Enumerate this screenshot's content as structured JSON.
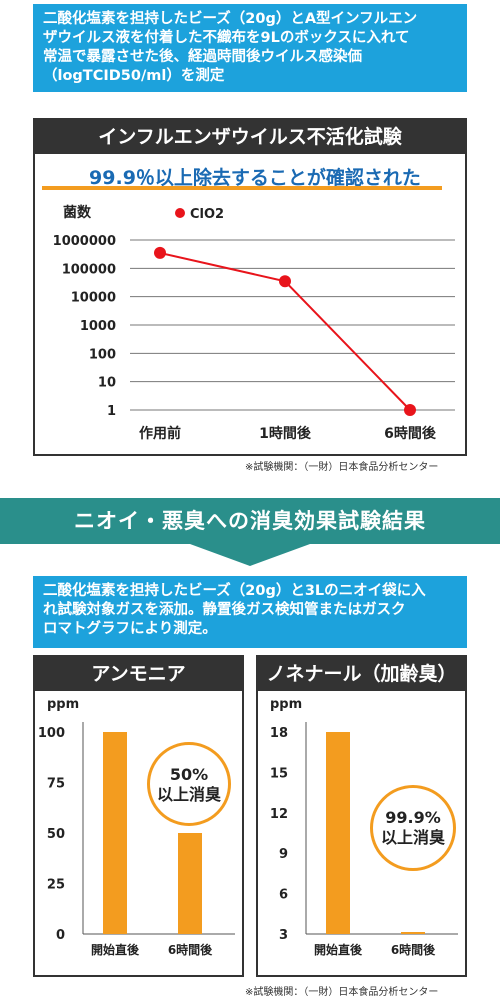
{
  "intro1": {
    "lines": [
      "二酸化塩素を担持したビーズ（20g）とA型インフルエン",
      "ザウイルス液を付着した不織布を9Lのボックスに入れて",
      "常温で暴露させた後、経過時間後ウイルス感染価",
      "（logTCID50/ml）を測定"
    ]
  },
  "virus_panel": {
    "title": "インフルエンザウイルス不活化試験",
    "headline": "99.9％以上除去することが確認された",
    "note": "※試験機関：（一財）日本食品分析センター"
  },
  "banner": {
    "title": "ニオイ・悪臭への消臭効果試験結果"
  },
  "intro2": {
    "lines": [
      "二酸化塩素を担持したビーズ（20g）と3Lのニオイ袋に入",
      "れ試験対象ガスを添加。静置後ガス検知管またはガスク",
      "ロマトグラフにより測定。"
    ]
  },
  "ammonia_panel": {
    "title": "アンモニア",
    "badge_line1": "50%",
    "badge_line2": "以上消臭"
  },
  "nonenal_panel": {
    "title": "ノネナール（加齢臭）",
    "badge_line1": "99.9%",
    "badge_line2": "以上消臭"
  },
  "bottom_note": "※試験機関：（一財）日本食品分析センター",
  "colors": {
    "blue": "#1da2dc",
    "orange": "#f39c1f",
    "red": "#e8141b",
    "teal": "#2a8f8b",
    "dark": "#333333"
  },
  "chart_data": [
    {
      "type": "line",
      "ylabel": "菌数",
      "yscale": "log",
      "ylim": [
        1,
        1000000
      ],
      "yticks": [
        "1000000",
        "100000",
        "10000",
        "1000",
        "100",
        "10",
        "1"
      ],
      "categories": [
        "作用前",
        "1時間後",
        "6時間後"
      ],
      "series": [
        {
          "name": "ClO2",
          "values": [
            350000,
            35000,
            1
          ]
        }
      ],
      "legend": "top-left"
    },
    {
      "type": "bar",
      "ylabel": "ppm",
      "ylim": [
        0,
        100
      ],
      "yticks": [
        "100",
        "75",
        "50",
        "25",
        "0"
      ],
      "categories": [
        "開始直後",
        "6時間後"
      ],
      "values": [
        100,
        50
      ]
    },
    {
      "type": "bar",
      "ylabel": "ppm",
      "ylim": [
        3,
        18
      ],
      "yticks": [
        "18",
        "15",
        "12",
        "9",
        "6",
        "3"
      ],
      "categories": [
        "開始直後",
        "6時間後"
      ],
      "values": [
        18,
        3
      ]
    }
  ]
}
